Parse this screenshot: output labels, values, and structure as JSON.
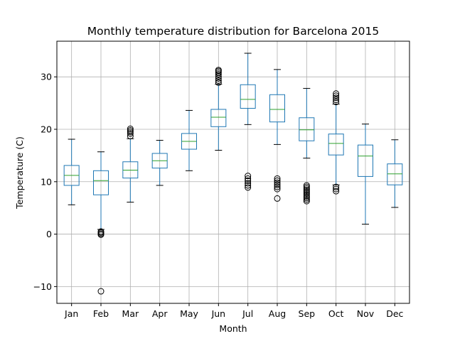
{
  "chart_data": {
    "type": "boxplot",
    "title": "Monthly temperature distribution for Barcelona 2015",
    "xlabel": "Month",
    "ylabel": "Temperature (C)",
    "ylim": [
      -13.2,
      36.8
    ],
    "yticks": [
      -10,
      0,
      10,
      20,
      30
    ],
    "grid": true,
    "colors": {
      "box": "#1f77b4",
      "median": "#2ca02c",
      "grid": "#b0b0b0",
      "flier": "#000000"
    },
    "categories": [
      "Jan",
      "Feb",
      "Mar",
      "Apr",
      "May",
      "Jun",
      "Jul",
      "Aug",
      "Sep",
      "Oct",
      "Nov",
      "Dec"
    ],
    "boxes": [
      {
        "label": "Jan",
        "whislo": 5.6,
        "q1": 9.3,
        "med": 11.2,
        "q3": 13.1,
        "whishi": 18.1,
        "fliers": []
      },
      {
        "label": "Feb",
        "whislo": 0.9,
        "q1": 7.5,
        "med": 10.2,
        "q3": 12.1,
        "whishi": 15.7,
        "fliers": [
          0.5,
          0.3,
          0.1,
          -0.1,
          -10.9
        ]
      },
      {
        "label": "Mar",
        "whislo": 6.1,
        "q1": 10.7,
        "med": 12.2,
        "q3": 13.8,
        "whishi": 18.2,
        "fliers": [
          18.7,
          19.2,
          19.5,
          19.8,
          20.1
        ]
      },
      {
        "label": "Apr",
        "whislo": 9.3,
        "q1": 12.6,
        "med": 14.0,
        "q3": 15.4,
        "whishi": 17.9,
        "fliers": []
      },
      {
        "label": "May",
        "whislo": 12.1,
        "q1": 16.2,
        "med": 17.7,
        "q3": 19.2,
        "whishi": 23.6,
        "fliers": []
      },
      {
        "label": "Jun",
        "whislo": 16.0,
        "q1": 20.5,
        "med": 22.3,
        "q3": 23.8,
        "whishi": 28.6,
        "fliers": [
          28.9,
          29.3,
          29.7,
          30.1,
          30.5,
          30.8,
          31.1,
          31.3
        ]
      },
      {
        "label": "Jul",
        "whislo": 20.9,
        "q1": 24.0,
        "med": 25.7,
        "q3": 28.5,
        "whishi": 34.5,
        "fliers": [
          11.1,
          10.6,
          10.2,
          9.7,
          9.3,
          8.9
        ]
      },
      {
        "label": "Aug",
        "whislo": 17.1,
        "q1": 21.4,
        "med": 23.8,
        "q3": 26.6,
        "whishi": 31.4,
        "fliers": [
          10.6,
          10.2,
          9.8,
          9.4,
          9.0,
          8.6,
          6.8
        ]
      },
      {
        "label": "Sep",
        "whislo": 14.5,
        "q1": 17.8,
        "med": 19.9,
        "q3": 22.2,
        "whishi": 27.8,
        "fliers": [
          9.3,
          9.0,
          8.7,
          8.4,
          8.1,
          7.8,
          7.5,
          7.2,
          6.9,
          6.6,
          6.3
        ]
      },
      {
        "label": "Oct",
        "whislo": 9.4,
        "q1": 15.1,
        "med": 17.3,
        "q3": 19.1,
        "whishi": 24.8,
        "fliers": [
          25.2,
          25.6,
          26.0,
          26.4,
          26.8,
          9.0,
          8.6,
          8.2
        ]
      },
      {
        "label": "Nov",
        "whislo": 1.9,
        "q1": 11.0,
        "med": 14.9,
        "q3": 17.0,
        "whishi": 21.0,
        "fliers": []
      },
      {
        "label": "Dec",
        "whislo": 5.1,
        "q1": 9.4,
        "med": 11.5,
        "q3": 13.4,
        "whishi": 18.0,
        "fliers": []
      }
    ]
  }
}
